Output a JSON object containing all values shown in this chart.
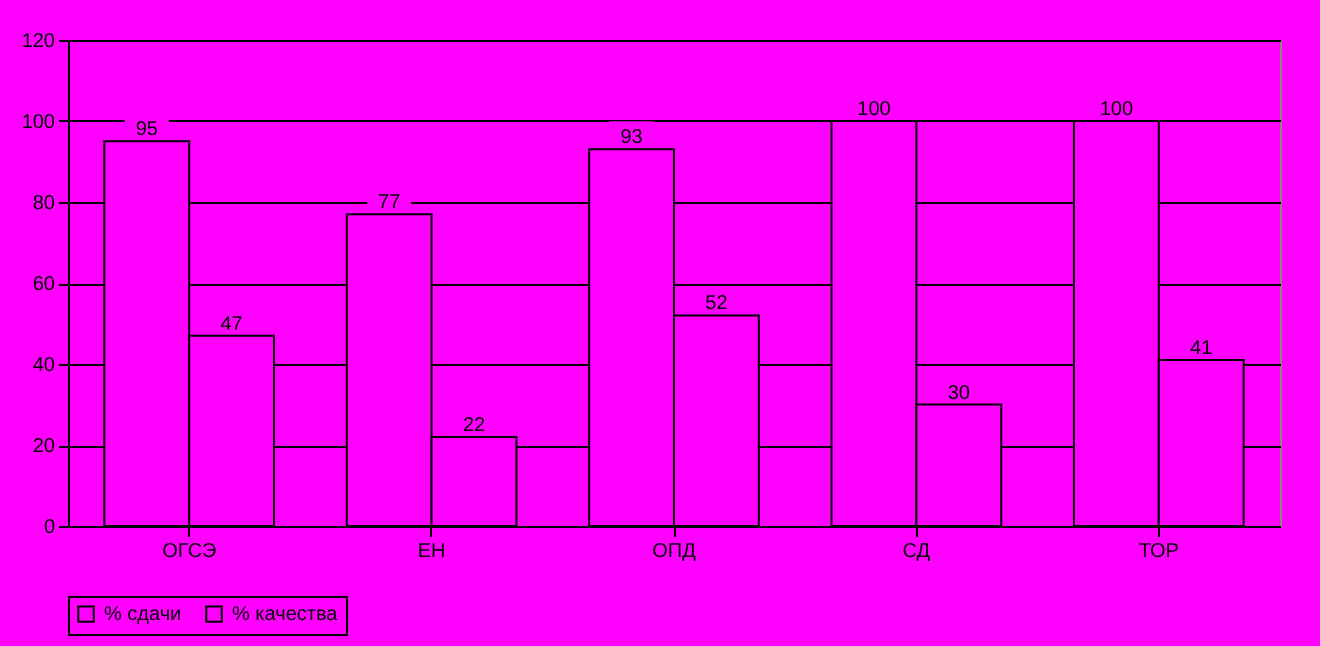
{
  "chart_data": {
    "type": "bar",
    "categories": [
      "ОГСЭ",
      "ЕН",
      "ОПД",
      "СД",
      "ТОР"
    ],
    "series": [
      {
        "name": "% сдачи",
        "color": "#ff00ff",
        "values": [
          95,
          77,
          93,
          100,
          100
        ]
      },
      {
        "name": "% качества",
        "color": "#ff00ff",
        "values": [
          47,
          22,
          52,
          30,
          41
        ]
      }
    ],
    "ylim": [
      0,
      120
    ],
    "yticks": [
      0,
      20,
      40,
      60,
      80,
      100,
      120
    ],
    "grid": "y",
    "legend": "bottom",
    "data_labels": true
  }
}
